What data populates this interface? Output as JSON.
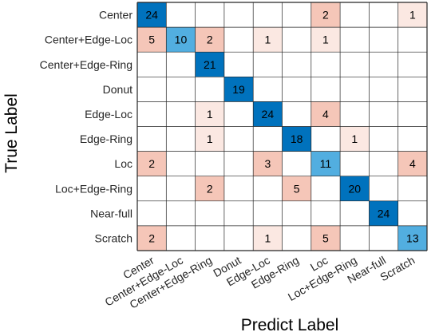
{
  "chart_data": {
    "type": "heatmap",
    "title": "",
    "xlabel": "Predict Label",
    "ylabel": "True Label",
    "row_labels": [
      "Center",
      "Center+Edge-Loc",
      "Center+Edge-Ring",
      "Donut",
      "Edge-Loc",
      "Edge-Ring",
      "Loc",
      "Loc+Edge-Ring",
      "Near-full",
      "Scratch"
    ],
    "col_labels": [
      "Center",
      "Center+Edge-Loc",
      "Center+Edge-Ring",
      "Donut",
      "Edge-Loc",
      "Edge-Ring",
      "Loc",
      "Loc+Edge-Ring",
      "Near-full",
      "Scratch"
    ],
    "values": [
      [
        24,
        0,
        0,
        0,
        0,
        0,
        2,
        0,
        0,
        1
      ],
      [
        5,
        10,
        2,
        0,
        1,
        0,
        1,
        0,
        0,
        0
      ],
      [
        0,
        0,
        21,
        0,
        0,
        0,
        0,
        0,
        0,
        0
      ],
      [
        0,
        0,
        0,
        19,
        0,
        0,
        0,
        0,
        0,
        0
      ],
      [
        0,
        0,
        1,
        0,
        24,
        0,
        4,
        0,
        0,
        0
      ],
      [
        0,
        0,
        1,
        0,
        0,
        18,
        0,
        1,
        0,
        0
      ],
      [
        2,
        0,
        0,
        0,
        3,
        0,
        11,
        0,
        0,
        4
      ],
      [
        0,
        0,
        2,
        0,
        0,
        5,
        0,
        20,
        0,
        0
      ],
      [
        0,
        0,
        0,
        0,
        0,
        0,
        0,
        0,
        24,
        0
      ],
      [
        2,
        0,
        0,
        0,
        1,
        0,
        5,
        0,
        0,
        13
      ]
    ],
    "colors": {
      "diagonal_dark": "#0072bd",
      "diagonal_light": "#52aee0",
      "off_diagonal_light": "#fbe8e2",
      "off_diagonal_mid": "#f5c6b8",
      "empty": "#ffffff",
      "grid": "#262626"
    }
  }
}
